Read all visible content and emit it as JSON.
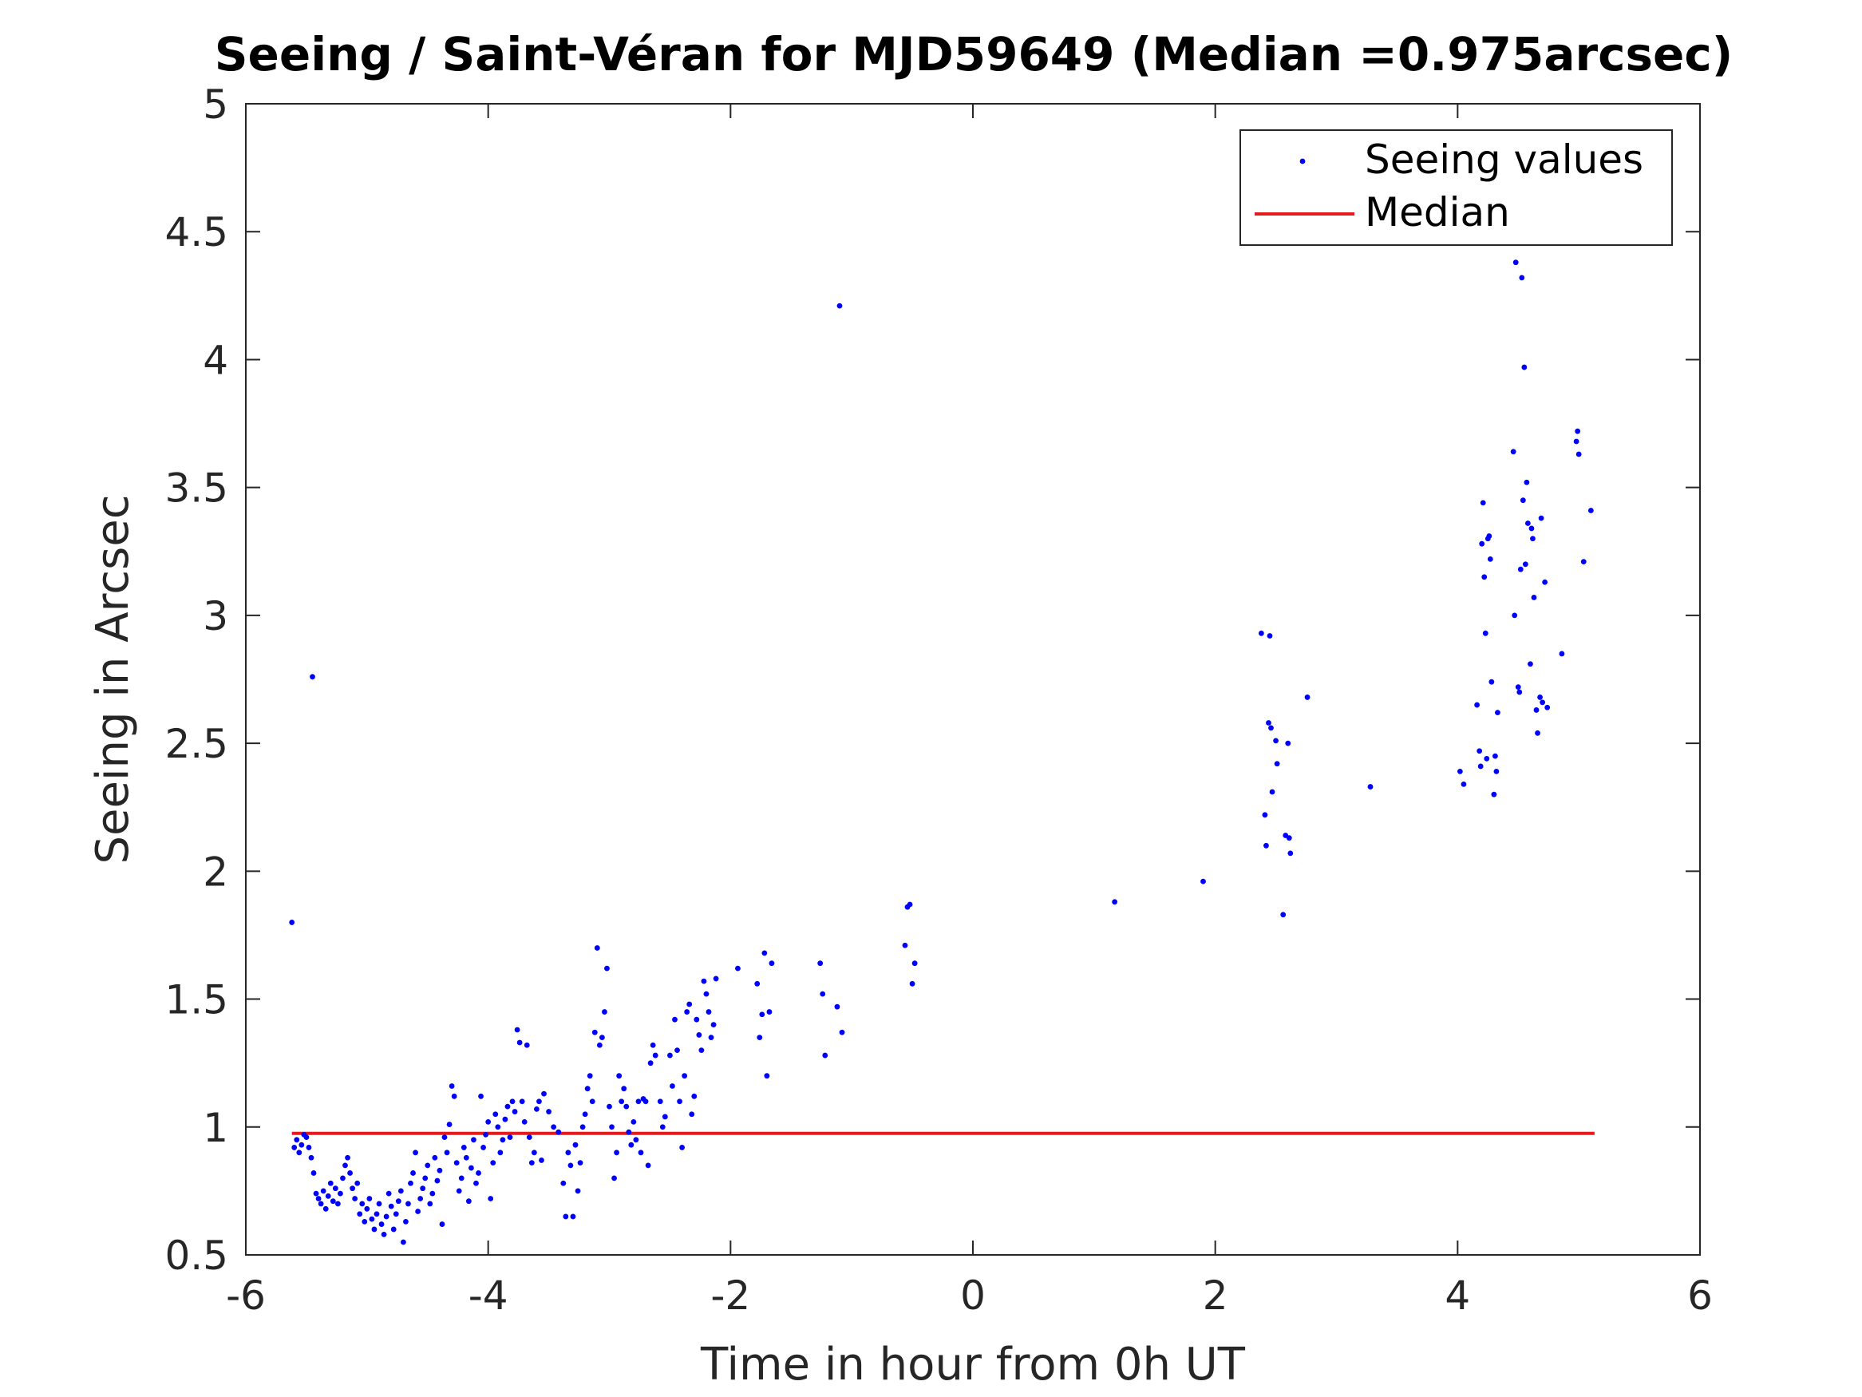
{
  "chart_data": {
    "type": "scatter",
    "title": "Seeing / Saint-Véran for MJD59649 (Median =0.975arcsec)",
    "xlabel": "Time in hour from 0h UT",
    "ylabel": "Seeing in Arcsec",
    "xlim": [
      -6,
      6
    ],
    "ylim": [
      0.5,
      5
    ],
    "xticks": [
      -6,
      -4,
      -2,
      0,
      2,
      4,
      6
    ],
    "xtick_labels": [
      "-6",
      "-4",
      "-2",
      "0",
      "2",
      "4",
      "6"
    ],
    "yticks": [
      0.5,
      1,
      1.5,
      2,
      2.5,
      3,
      3.5,
      4,
      4.5,
      5
    ],
    "ytick_labels": [
      "0.5",
      "1",
      "1.5",
      "2",
      "2.5",
      "3",
      "3.5",
      "4",
      "4.5",
      "5"
    ],
    "grid": false,
    "legend_position": "top-right",
    "series": [
      {
        "name": "Seeing values",
        "color": "#0000ff",
        "marker": "dot",
        "points": [
          [
            -5.62,
            1.8
          ],
          [
            -5.6,
            0.92
          ],
          [
            -5.58,
            0.95
          ],
          [
            -5.56,
            0.9
          ],
          [
            -5.54,
            0.93
          ],
          [
            -5.52,
            0.97
          ],
          [
            -5.5,
            0.96
          ],
          [
            -5.48,
            0.92
          ],
          [
            -5.46,
            0.88
          ],
          [
            -5.45,
            2.76
          ],
          [
            -5.44,
            0.82
          ],
          [
            -5.42,
            0.74
          ],
          [
            -5.4,
            0.72
          ],
          [
            -5.38,
            0.7
          ],
          [
            -5.36,
            0.75
          ],
          [
            -5.34,
            0.68
          ],
          [
            -5.32,
            0.73
          ],
          [
            -5.3,
            0.78
          ],
          [
            -5.28,
            0.71
          ],
          [
            -5.26,
            0.76
          ],
          [
            -5.24,
            0.7
          ],
          [
            -5.22,
            0.74
          ],
          [
            -5.2,
            0.8
          ],
          [
            -5.18,
            0.85
          ],
          [
            -5.16,
            0.88
          ],
          [
            -5.14,
            0.82
          ],
          [
            -5.12,
            0.76
          ],
          [
            -5.1,
            0.72
          ],
          [
            -5.08,
            0.78
          ],
          [
            -5.06,
            0.66
          ],
          [
            -5.04,
            0.7
          ],
          [
            -5.02,
            0.63
          ],
          [
            -5.0,
            0.68
          ],
          [
            -4.98,
            0.72
          ],
          [
            -4.96,
            0.64
          ],
          [
            -4.94,
            0.6
          ],
          [
            -4.92,
            0.66
          ],
          [
            -4.9,
            0.7
          ],
          [
            -4.88,
            0.62
          ],
          [
            -4.86,
            0.58
          ],
          [
            -4.84,
            0.65
          ],
          [
            -4.82,
            0.74
          ],
          [
            -4.8,
            0.69
          ],
          [
            -4.78,
            0.6
          ],
          [
            -4.76,
            0.66
          ],
          [
            -4.74,
            0.71
          ],
          [
            -4.72,
            0.75
          ],
          [
            -4.7,
            0.55
          ],
          [
            -4.68,
            0.63
          ],
          [
            -4.66,
            0.7
          ],
          [
            -4.64,
            0.78
          ],
          [
            -4.62,
            0.82
          ],
          [
            -4.6,
            0.9
          ],
          [
            -4.58,
            0.67
          ],
          [
            -4.56,
            0.72
          ],
          [
            -4.54,
            0.76
          ],
          [
            -4.52,
            0.8
          ],
          [
            -4.5,
            0.85
          ],
          [
            -4.48,
            0.7
          ],
          [
            -4.46,
            0.74
          ],
          [
            -4.44,
            0.88
          ],
          [
            -4.42,
            0.79
          ],
          [
            -4.4,
            0.83
          ],
          [
            -4.38,
            0.62
          ],
          [
            -4.36,
            0.96
          ],
          [
            -4.34,
            0.9
          ],
          [
            -4.32,
            1.01
          ],
          [
            -4.3,
            1.16
          ],
          [
            -4.28,
            1.12
          ],
          [
            -4.26,
            0.86
          ],
          [
            -4.24,
            0.75
          ],
          [
            -4.22,
            0.8
          ],
          [
            -4.2,
            0.92
          ],
          [
            -4.18,
            0.88
          ],
          [
            -4.16,
            0.71
          ],
          [
            -4.14,
            0.84
          ],
          [
            -4.12,
            0.95
          ],
          [
            -4.1,
            0.78
          ],
          [
            -4.08,
            0.82
          ],
          [
            -4.06,
            1.12
          ],
          [
            -4.04,
            0.92
          ],
          [
            -4.02,
            0.97
          ],
          [
            -4.0,
            1.02
          ],
          [
            -3.98,
            0.72
          ],
          [
            -3.96,
            0.86
          ],
          [
            -3.94,
            1.05
          ],
          [
            -3.92,
            1.0
          ],
          [
            -3.9,
            0.9
          ],
          [
            -3.88,
            0.95
          ],
          [
            -3.86,
            1.03
          ],
          [
            -3.84,
            1.08
          ],
          [
            -3.82,
            0.96
          ],
          [
            -3.8,
            1.1
          ],
          [
            -3.78,
            1.06
          ],
          [
            -3.76,
            1.38
          ],
          [
            -3.74,
            1.33
          ],
          [
            -3.72,
            1.1
          ],
          [
            -3.7,
            1.02
          ],
          [
            -3.68,
            1.32
          ],
          [
            -3.66,
            0.96
          ],
          [
            -3.64,
            0.86
          ],
          [
            -3.62,
            0.9
          ],
          [
            -3.6,
            1.07
          ],
          [
            -3.58,
            1.1
          ],
          [
            -3.56,
            0.87
          ],
          [
            -3.54,
            1.13
          ],
          [
            -3.5,
            1.06
          ],
          [
            -3.46,
            1.0
          ],
          [
            -3.42,
            0.98
          ],
          [
            -3.38,
            0.78
          ],
          [
            -3.36,
            0.65
          ],
          [
            -3.34,
            0.9
          ],
          [
            -3.32,
            0.85
          ],
          [
            -3.3,
            0.65
          ],
          [
            -3.28,
            0.93
          ],
          [
            -3.26,
            0.75
          ],
          [
            -3.24,
            0.86
          ],
          [
            -3.22,
            1.0
          ],
          [
            -3.2,
            1.05
          ],
          [
            -3.18,
            1.15
          ],
          [
            -3.16,
            1.2
          ],
          [
            -3.14,
            1.1
          ],
          [
            -3.12,
            1.37
          ],
          [
            -3.1,
            1.7
          ],
          [
            -3.08,
            1.32
          ],
          [
            -3.06,
            1.35
          ],
          [
            -3.04,
            1.45
          ],
          [
            -3.02,
            1.62
          ],
          [
            -3.0,
            1.08
          ],
          [
            -2.98,
            1.0
          ],
          [
            -2.96,
            0.8
          ],
          [
            -2.94,
            0.9
          ],
          [
            -2.92,
            1.2
          ],
          [
            -2.9,
            1.1
          ],
          [
            -2.88,
            1.15
          ],
          [
            -2.86,
            1.08
          ],
          [
            -2.84,
            0.98
          ],
          [
            -2.82,
            0.93
          ],
          [
            -2.8,
            1.02
          ],
          [
            -2.78,
            0.95
          ],
          [
            -2.76,
            1.1
          ],
          [
            -2.74,
            0.9
          ],
          [
            -2.72,
            1.11
          ],
          [
            -2.7,
            1.1
          ],
          [
            -2.68,
            0.85
          ],
          [
            -2.66,
            1.25
          ],
          [
            -2.64,
            1.32
          ],
          [
            -2.62,
            1.28
          ],
          [
            -2.58,
            1.1
          ],
          [
            -2.56,
            1.0
          ],
          [
            -2.54,
            1.04
          ],
          [
            -2.5,
            1.28
          ],
          [
            -2.48,
            1.16
          ],
          [
            -2.46,
            1.42
          ],
          [
            -2.44,
            1.3
          ],
          [
            -2.42,
            1.1
          ],
          [
            -2.4,
            0.92
          ],
          [
            -2.38,
            1.2
          ],
          [
            -2.36,
            1.45
          ],
          [
            -2.34,
            1.48
          ],
          [
            -2.32,
            1.05
          ],
          [
            -2.3,
            1.12
          ],
          [
            -2.28,
            1.42
          ],
          [
            -2.26,
            1.36
          ],
          [
            -2.24,
            1.3
          ],
          [
            -2.22,
            1.57
          ],
          [
            -2.2,
            1.52
          ],
          [
            -2.18,
            1.45
          ],
          [
            -2.16,
            1.35
          ],
          [
            -2.14,
            1.4
          ],
          [
            -2.12,
            1.58
          ],
          [
            -1.94,
            1.62
          ],
          [
            -1.78,
            1.56
          ],
          [
            -1.76,
            1.35
          ],
          [
            -1.74,
            1.44
          ],
          [
            -1.72,
            1.68
          ],
          [
            -1.7,
            1.2
          ],
          [
            -1.68,
            1.45
          ],
          [
            -1.66,
            1.64
          ],
          [
            -1.26,
            1.64
          ],
          [
            -1.24,
            1.52
          ],
          [
            -1.22,
            1.28
          ],
          [
            -1.12,
            1.47
          ],
          [
            -1.1,
            4.21
          ],
          [
            -1.08,
            1.37
          ],
          [
            -0.56,
            1.71
          ],
          [
            -0.54,
            1.86
          ],
          [
            -0.52,
            1.87
          ],
          [
            -0.5,
            1.56
          ],
          [
            -0.48,
            1.64
          ],
          [
            1.17,
            1.88
          ],
          [
            1.9,
            1.96
          ],
          [
            2.38,
            2.93
          ],
          [
            2.41,
            2.22
          ],
          [
            2.42,
            2.1
          ],
          [
            2.44,
            2.58
          ],
          [
            2.45,
            2.92
          ],
          [
            2.46,
            2.56
          ],
          [
            2.47,
            2.31
          ],
          [
            2.5,
            2.51
          ],
          [
            2.51,
            2.42
          ],
          [
            2.56,
            1.83
          ],
          [
            2.58,
            2.14
          ],
          [
            2.6,
            2.5
          ],
          [
            2.61,
            2.13
          ],
          [
            2.62,
            2.07
          ],
          [
            2.76,
            2.68
          ],
          [
            3.28,
            2.33
          ],
          [
            4.02,
            2.39
          ],
          [
            4.05,
            2.34
          ],
          [
            4.16,
            2.65
          ],
          [
            4.18,
            2.47
          ],
          [
            4.19,
            2.41
          ],
          [
            4.2,
            3.28
          ],
          [
            4.21,
            3.44
          ],
          [
            4.22,
            3.15
          ],
          [
            4.23,
            2.93
          ],
          [
            4.24,
            2.44
          ],
          [
            4.25,
            3.3
          ],
          [
            4.26,
            3.31
          ],
          [
            4.27,
            3.22
          ],
          [
            4.28,
            2.74
          ],
          [
            4.3,
            2.3
          ],
          [
            4.31,
            2.45
          ],
          [
            4.32,
            2.39
          ],
          [
            4.33,
            2.62
          ],
          [
            4.46,
            3.64
          ],
          [
            4.47,
            3.0
          ],
          [
            4.48,
            4.38
          ],
          [
            4.5,
            2.72
          ],
          [
            4.51,
            2.7
          ],
          [
            4.52,
            3.18
          ],
          [
            4.53,
            4.32
          ],
          [
            4.54,
            3.45
          ],
          [
            4.55,
            3.97
          ],
          [
            4.56,
            3.2
          ],
          [
            4.57,
            3.52
          ],
          [
            4.58,
            3.36
          ],
          [
            4.6,
            2.81
          ],
          [
            4.61,
            3.34
          ],
          [
            4.62,
            3.3
          ],
          [
            4.63,
            3.07
          ],
          [
            4.65,
            2.63
          ],
          [
            4.66,
            2.54
          ],
          [
            4.68,
            2.68
          ],
          [
            4.69,
            3.38
          ],
          [
            4.7,
            2.66
          ],
          [
            4.72,
            3.13
          ],
          [
            4.74,
            2.64
          ],
          [
            4.86,
            2.85
          ],
          [
            4.98,
            3.68
          ],
          [
            4.99,
            3.72
          ],
          [
            5.0,
            3.63
          ],
          [
            5.04,
            3.21
          ],
          [
            5.1,
            3.41
          ]
        ]
      },
      {
        "name": "Median",
        "color": "#e41a1c",
        "marker": "line",
        "points": [
          [
            -5.62,
            0.975
          ],
          [
            5.13,
            0.975
          ]
        ]
      }
    ]
  }
}
